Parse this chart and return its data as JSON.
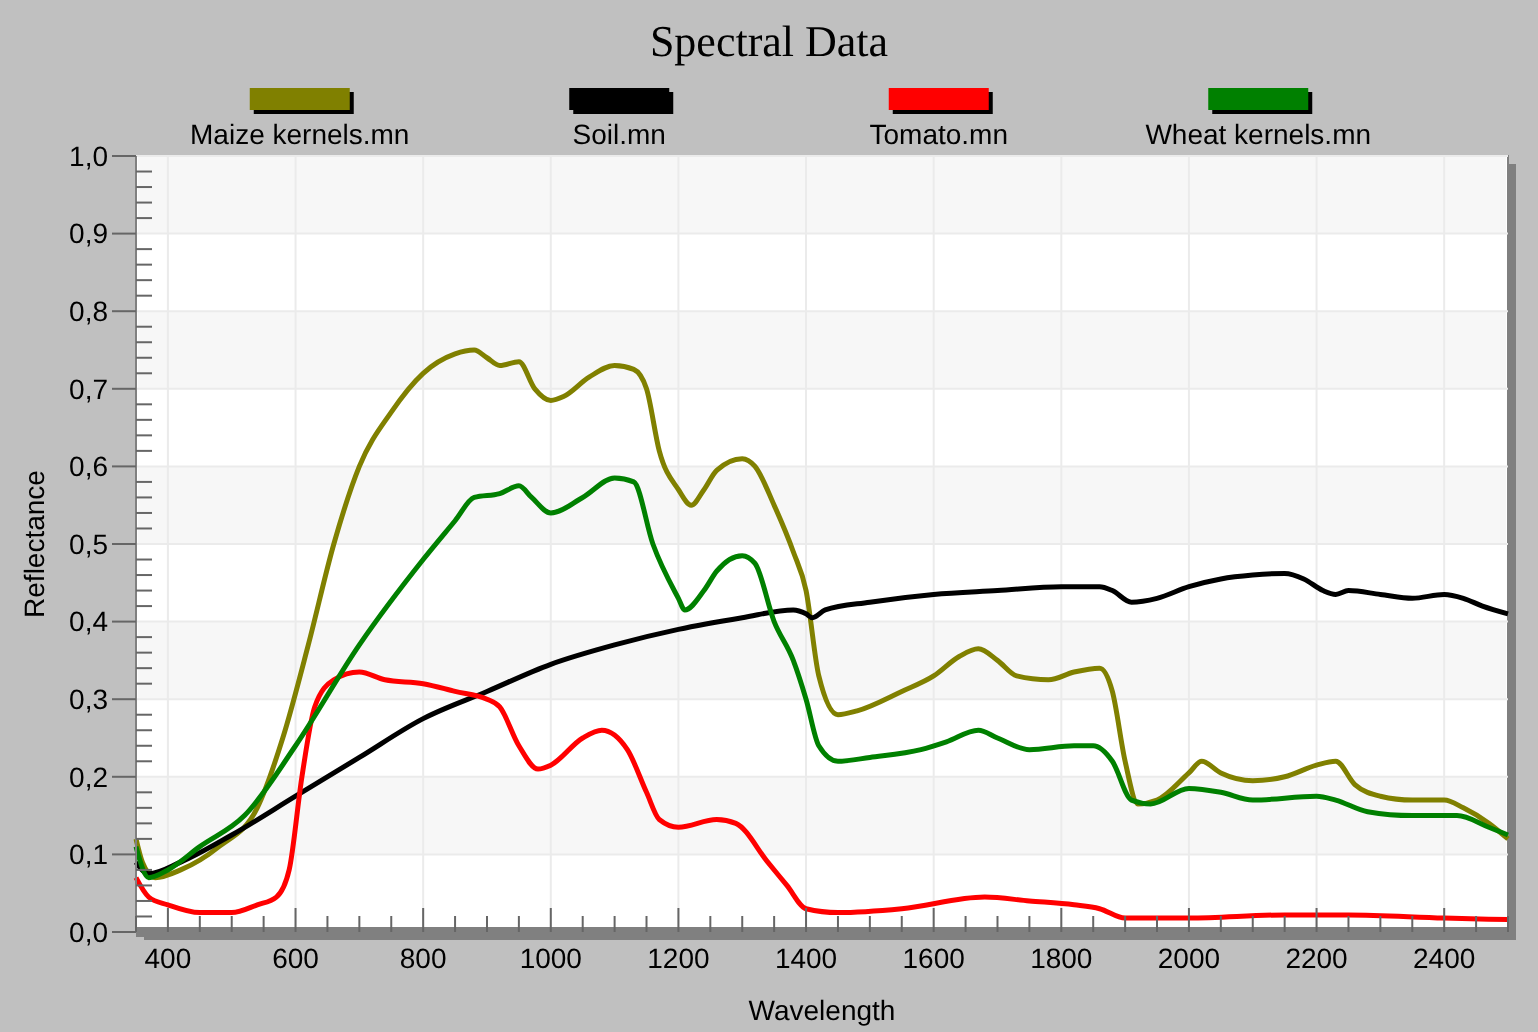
{
  "chart_data": {
    "type": "line",
    "title": "Spectral Data",
    "xlabel": "Wavelength",
    "ylabel": "Reflectance",
    "legend": "top",
    "grid": true,
    "xlim": [
      350,
      2500
    ],
    "xticks": [
      400,
      600,
      800,
      1000,
      1200,
      1400,
      1600,
      1800,
      2000,
      2200,
      2400
    ],
    "ylim": [
      0,
      1
    ],
    "yticks": [
      {
        "value": 0,
        "label": "0,0"
      },
      {
        "value": 0.1,
        "label": "0,1"
      },
      {
        "value": 0.2,
        "label": "0,2"
      },
      {
        "value": 0.3,
        "label": "0,3"
      },
      {
        "value": 0.4,
        "label": "0,4"
      },
      {
        "value": 0.5,
        "label": "0,5"
      },
      {
        "value": 0.6,
        "label": "0,6"
      },
      {
        "value": 0.7,
        "label": "0,7"
      },
      {
        "value": 0.8,
        "label": "0,8"
      },
      {
        "value": 0.9,
        "label": "0,9"
      },
      {
        "value": 1,
        "label": "1,0"
      }
    ],
    "series": [
      {
        "name": "Maize kernels.mn",
        "color": "#808000",
        "x": [
          350,
          360,
          380,
          420,
          480,
          540,
          580,
          620,
          660,
          700,
          750,
          800,
          850,
          880,
          900,
          920,
          950,
          975,
          1000,
          1020,
          1060,
          1100,
          1130,
          1150,
          1170,
          1200,
          1220,
          1240,
          1260,
          1300,
          1320,
          1350,
          1380,
          1400,
          1420,
          1450,
          1480,
          1550,
          1600,
          1640,
          1670,
          1700,
          1730,
          1780,
          1820,
          1860,
          1880,
          1900,
          1920,
          1950,
          2000,
          2020,
          2050,
          2100,
          2150,
          2200,
          2230,
          2260,
          2300,
          2350,
          2400,
          2430,
          2470,
          2500
        ],
        "values": [
          0.12,
          0.09,
          0.07,
          0.08,
          0.11,
          0.16,
          0.25,
          0.37,
          0.5,
          0.6,
          0.67,
          0.72,
          0.745,
          0.75,
          0.74,
          0.73,
          0.735,
          0.7,
          0.685,
          0.69,
          0.715,
          0.73,
          0.725,
          0.7,
          0.62,
          0.57,
          0.55,
          0.57,
          0.595,
          0.61,
          0.6,
          0.55,
          0.49,
          0.44,
          0.33,
          0.28,
          0.285,
          0.31,
          0.33,
          0.355,
          0.365,
          0.35,
          0.33,
          0.325,
          0.335,
          0.34,
          0.31,
          0.22,
          0.165,
          0.17,
          0.205,
          0.22,
          0.205,
          0.195,
          0.2,
          0.215,
          0.22,
          0.19,
          0.175,
          0.17,
          0.17,
          0.16,
          0.14,
          0.12
        ]
      },
      {
        "name": "Soil.mn",
        "color": "#000000",
        "x": [
          350,
          370,
          420,
          500,
          600,
          700,
          800,
          900,
          1000,
          1100,
          1200,
          1300,
          1380,
          1400,
          1410,
          1430,
          1500,
          1600,
          1700,
          1800,
          1860,
          1880,
          1910,
          1950,
          2000,
          2050,
          2100,
          2150,
          2180,
          2210,
          2230,
          2250,
          2300,
          2350,
          2400,
          2430,
          2460,
          2500
        ],
        "values": [
          0.09,
          0.075,
          0.09,
          0.125,
          0.175,
          0.225,
          0.275,
          0.31,
          0.345,
          0.37,
          0.39,
          0.405,
          0.415,
          0.41,
          0.405,
          0.415,
          0.425,
          0.435,
          0.44,
          0.445,
          0.445,
          0.44,
          0.425,
          0.43,
          0.445,
          0.455,
          0.46,
          0.462,
          0.455,
          0.44,
          0.435,
          0.44,
          0.435,
          0.43,
          0.435,
          0.43,
          0.42,
          0.41
        ]
      },
      {
        "name": "Tomato.mn",
        "color": "#ff0000",
        "x": [
          350,
          370,
          400,
          450,
          500,
          540,
          570,
          590,
          610,
          630,
          660,
          700,
          740,
          800,
          850,
          900,
          920,
          950,
          980,
          1000,
          1050,
          1080,
          1120,
          1150,
          1170,
          1200,
          1260,
          1290,
          1340,
          1370,
          1400,
          1450,
          1550,
          1680,
          1750,
          1820,
          1860,
          1900,
          2000,
          2150,
          2250,
          2400,
          2500
        ],
        "values": [
          0.07,
          0.045,
          0.035,
          0.025,
          0.025,
          0.035,
          0.045,
          0.08,
          0.2,
          0.29,
          0.325,
          0.335,
          0.325,
          0.32,
          0.31,
          0.3,
          0.29,
          0.24,
          0.21,
          0.215,
          0.25,
          0.26,
          0.235,
          0.18,
          0.145,
          0.135,
          0.145,
          0.14,
          0.09,
          0.06,
          0.03,
          0.025,
          0.03,
          0.045,
          0.04,
          0.035,
          0.03,
          0.018,
          0.018,
          0.022,
          0.022,
          0.018,
          0.016
        ]
      },
      {
        "name": "Wheat kernels.mn",
        "color": "#008000",
        "x": [
          350,
          370,
          400,
          450,
          520,
          600,
          700,
          800,
          850,
          880,
          920,
          950,
          970,
          1000,
          1050,
          1100,
          1130,
          1160,
          1200,
          1210,
          1240,
          1260,
          1300,
          1320,
          1350,
          1380,
          1400,
          1420,
          1450,
          1500,
          1580,
          1620,
          1670,
          1700,
          1750,
          1820,
          1850,
          1880,
          1910,
          1940,
          2000,
          2050,
          2100,
          2200,
          2230,
          2280,
          2350,
          2420,
          2470,
          2500
        ],
        "values": [
          0.11,
          0.07,
          0.08,
          0.11,
          0.15,
          0.24,
          0.37,
          0.48,
          0.53,
          0.56,
          0.565,
          0.575,
          0.56,
          0.54,
          0.56,
          0.585,
          0.58,
          0.5,
          0.43,
          0.415,
          0.44,
          0.465,
          0.485,
          0.475,
          0.4,
          0.35,
          0.3,
          0.24,
          0.22,
          0.225,
          0.235,
          0.245,
          0.26,
          0.25,
          0.235,
          0.24,
          0.24,
          0.22,
          0.17,
          0.165,
          0.185,
          0.18,
          0.17,
          0.175,
          0.17,
          0.155,
          0.15,
          0.15,
          0.135,
          0.125
        ]
      }
    ]
  }
}
